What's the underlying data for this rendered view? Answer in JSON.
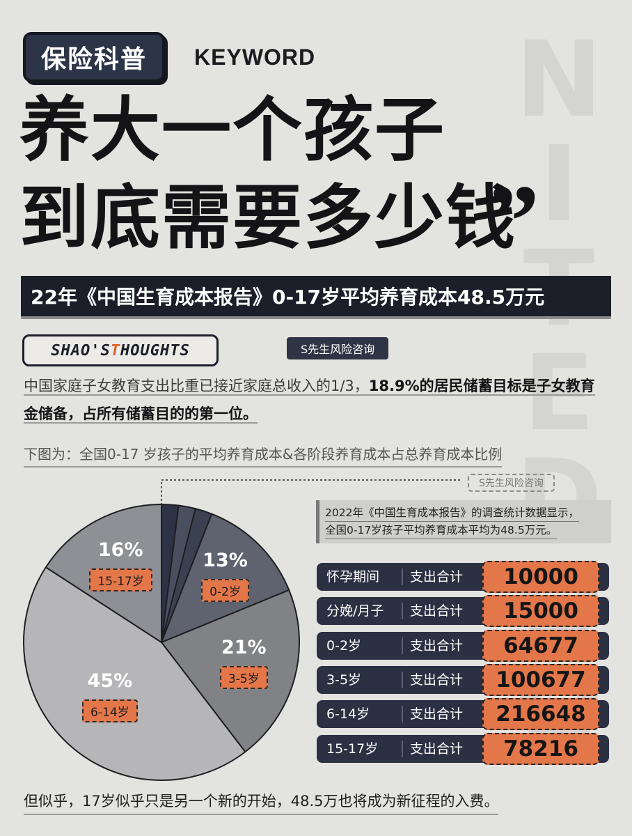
{
  "badge": "保险科普",
  "keyword": "KEYWORD",
  "headline": {
    "line1": "养大一个孩子",
    "line2": "到底需要多少钱"
  },
  "subtitle": "22年《中国生育成本报告》0-17岁平均养育成本48.5万元",
  "thoughts": {
    "p1": "SHAO'S ",
    "p2": "T",
    "p3": "HOUGHTS"
  },
  "source_tag": "S先生风险咨询",
  "paragraph": {
    "part1": "中国家庭子女教育支出比重已接近家庭总收入的1/3，",
    "part2": "18.9%的居民储蓄目标是子女教育金储备，占所有储蓄目的的第一位。"
  },
  "caption": "下图为：全国0-17 岁孩子的平均养育成本&各阶段养育成本占总养育成本比例",
  "right_source": "S先生风险咨询",
  "info": {
    "line1": "2022年《中国生育成本报告》的调查统计数据显示，",
    "line2": "全国0-17岁孩子平均养育成本平均为48.5万元。"
  },
  "colors": {
    "accent": "#e4774a",
    "dark": "#2b3042"
  },
  "chart_data": {
    "type": "pie",
    "slices": [
      {
        "pct_label": "16%",
        "range": "15-17岁",
        "value": 16
      },
      {
        "pct_label": "13%",
        "range": "0-2岁",
        "value": 13
      },
      {
        "pct_label": "21%",
        "range": "3-5岁",
        "value": 21
      },
      {
        "pct_label": "45%",
        "range": "6-14岁",
        "value": 45
      }
    ],
    "unlabeled_slices": [
      2,
      2,
      2
    ]
  },
  "costs": [
    {
      "stage": "怀孕期间",
      "label": "支出合计",
      "value": "10000"
    },
    {
      "stage": "分娩/月子",
      "label": "支出合计",
      "value": "15000"
    },
    {
      "stage": "0-2岁",
      "label": "支出合计",
      "value": "64677"
    },
    {
      "stage": "3-5岁",
      "label": "支出合计",
      "value": "100677"
    },
    {
      "stage": "6-14岁",
      "label": "支出合计",
      "value": "216648"
    },
    {
      "stage": "15-17岁",
      "label": "支出合计",
      "value": "78216"
    }
  ],
  "footer": "但似乎，17岁似乎只是另一个新的开始，48.5万也将成为新征程的入费。"
}
